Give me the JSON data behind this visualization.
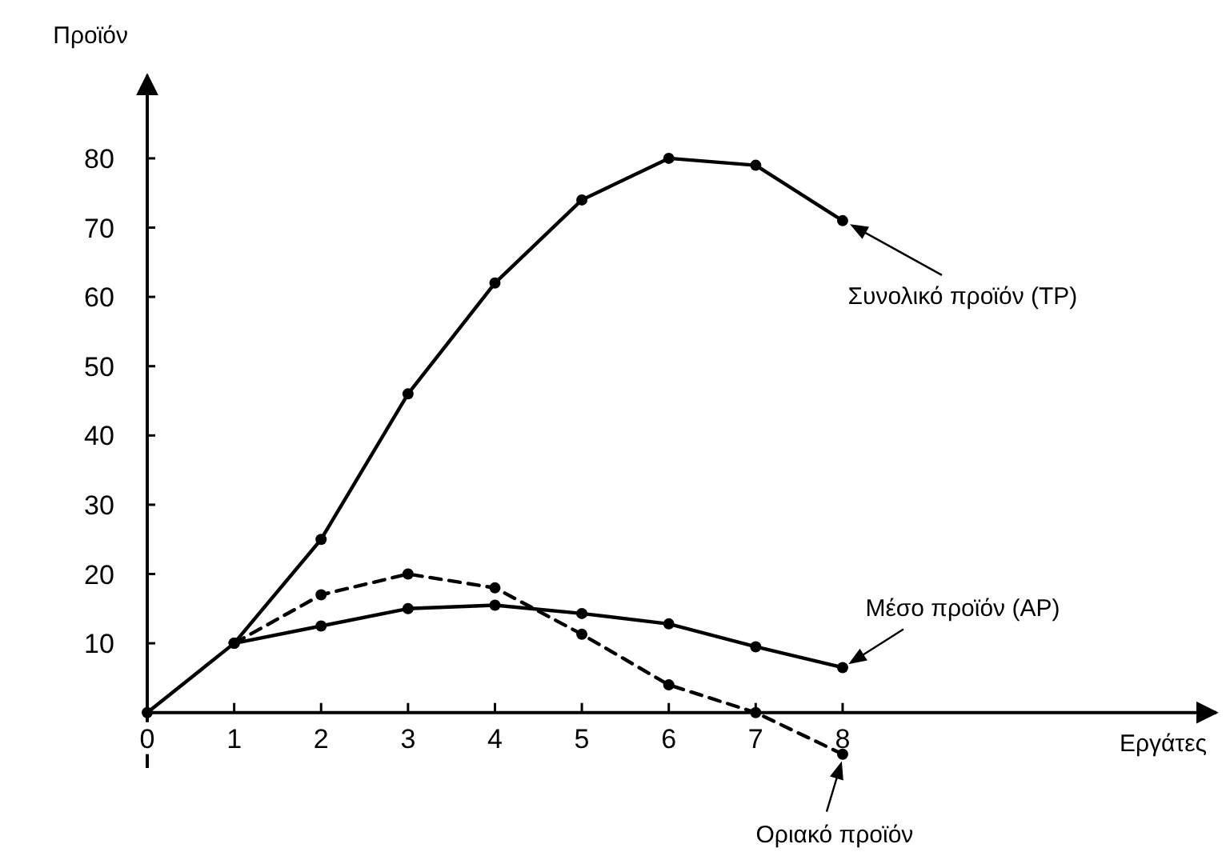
{
  "chart_data": {
    "type": "line",
    "xlabel": "Εργάτες",
    "ylabel": "Προϊόν",
    "xlim": [
      0,
      12.3
    ],
    "ylim": [
      -8,
      92
    ],
    "xticks": [
      0,
      1,
      2,
      3,
      4,
      5,
      6,
      7,
      8
    ],
    "yticks": [
      10,
      20,
      30,
      40,
      50,
      60,
      70,
      80
    ],
    "marker": "circle",
    "grid": false,
    "series": [
      {
        "color": "#000000",
        "line_style": "solid",
        "x": [
          0,
          1,
          2,
          3,
          4,
          5,
          6,
          7,
          8
        ],
        "values": [
          0,
          10,
          25,
          46,
          62,
          74,
          80,
          79,
          71
        ]
      },
      {
        "color": "#000000",
        "line_style": "solid",
        "x": [
          1,
          2,
          3,
          4,
          5,
          6,
          7,
          8
        ],
        "values": [
          10,
          12.5,
          15,
          15.5,
          14.3,
          12.8,
          9.5,
          6.5
        ]
      },
      {
        "color": "#000000",
        "line_style": "dashed",
        "x": [
          1,
          2,
          3,
          4,
          5,
          6,
          7,
          8
        ],
        "values": [
          10,
          17,
          20,
          18,
          11.3,
          4,
          0,
          -6
        ]
      }
    ],
    "annotations": [
      "Συνολικό προϊόν (TP)",
      "Μέσο προϊόν (AP)",
      "Οριακό προϊόν"
    ]
  }
}
